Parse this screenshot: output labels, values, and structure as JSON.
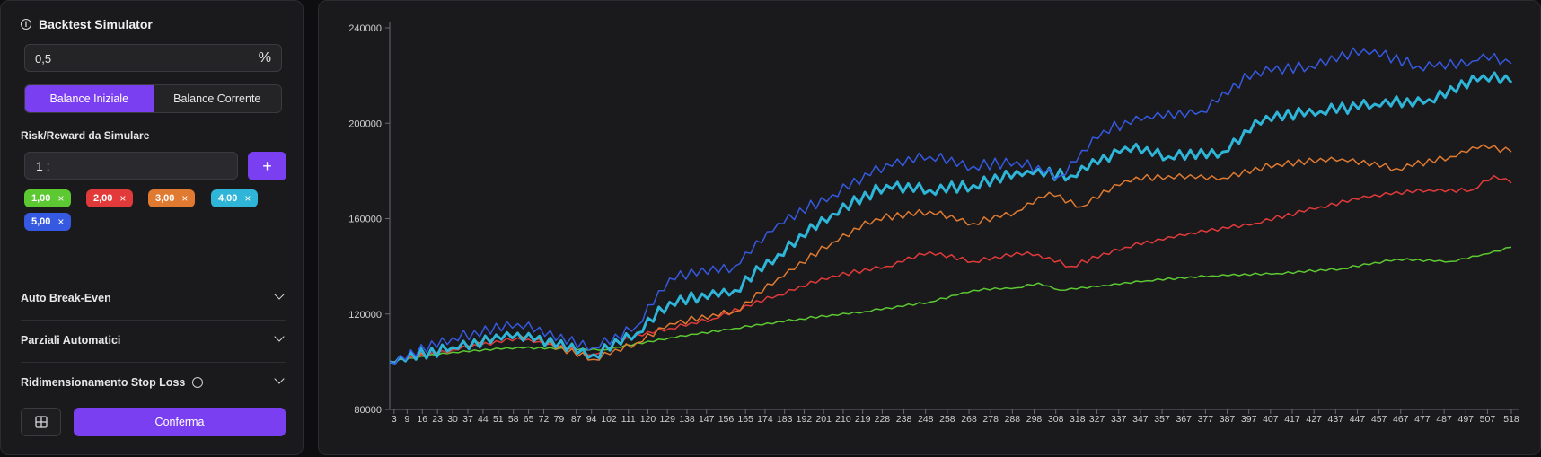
{
  "panel": {
    "title": "Backtest Simulator",
    "risk_value": "0,5",
    "risk_unit": "%",
    "balance_tabs": [
      {
        "label": "Balance Iniziale",
        "active": true
      },
      {
        "label": "Balance Corrente",
        "active": false
      }
    ],
    "rr_label": "Risk/Reward da Simulare",
    "rr_prefix": "1 :",
    "add_label": "+",
    "chips": [
      {
        "label": "1,00",
        "color": "#5cc832"
      },
      {
        "label": "2,00",
        "color": "#e23a3a"
      },
      {
        "label": "3,00",
        "color": "#e07a30"
      },
      {
        "label": "4,00",
        "color": "#2eb5d8"
      },
      {
        "label": "5,00",
        "color": "#3559e0"
      }
    ],
    "chip_close": "×",
    "accordions": [
      {
        "label": "Auto Break-Even",
        "icon": "chevron-down-icon"
      },
      {
        "label": "Parziali Automatici",
        "icon": "chevron-down-icon"
      },
      {
        "label": "Ridimensionamento Stop Loss",
        "icon": "chevron-down-icon",
        "info": true
      }
    ],
    "confirm_label": "Conferma",
    "grid_icon": "layout-grid-icon",
    "accent": "#7b3ff2"
  },
  "chart_data": {
    "type": "line",
    "y_ticks": [
      "240000",
      "200000",
      "160000",
      "120000",
      "80000"
    ],
    "ylim": [
      80000,
      240000
    ],
    "xlim": [
      1,
      518
    ],
    "x_ticks": [
      "3",
      "9",
      "16",
      "23",
      "30",
      "37",
      "44",
      "51",
      "58",
      "65",
      "72",
      "79",
      "87",
      "94",
      "102",
      "111",
      "120",
      "129",
      "138",
      "147",
      "156",
      "165",
      "174",
      "183",
      "192",
      "201",
      "210",
      "219",
      "228",
      "238",
      "248",
      "258",
      "268",
      "278",
      "288",
      "298",
      "308",
      "318",
      "327",
      "337",
      "347",
      "357",
      "367",
      "377",
      "387",
      "397",
      "407",
      "417",
      "427",
      "437",
      "447",
      "457",
      "467",
      "477",
      "487",
      "497",
      "507",
      "518"
    ],
    "grid": false,
    "series": [
      {
        "color": "#5cc832",
        "width": 1.5,
        "points": [
          [
            1,
            100000
          ],
          [
            30,
            104000
          ],
          [
            60,
            106000
          ],
          [
            100,
            105000
          ],
          [
            130,
            110000
          ],
          [
            160,
            114000
          ],
          [
            190,
            118000
          ],
          [
            220,
            121000
          ],
          [
            250,
            125000
          ],
          [
            270,
            130000
          ],
          [
            290,
            131000
          ],
          [
            300,
            133000
          ],
          [
            310,
            130000
          ],
          [
            330,
            132000
          ],
          [
            350,
            134000
          ],
          [
            380,
            136000
          ],
          [
            410,
            137000
          ],
          [
            440,
            139000
          ],
          [
            465,
            143000
          ],
          [
            490,
            142000
          ],
          [
            505,
            145000
          ],
          [
            518,
            148000
          ]
        ]
      },
      {
        "color": "#e23a3a",
        "width": 1.5,
        "points": [
          [
            1,
            100000
          ],
          [
            30,
            105000
          ],
          [
            60,
            110000
          ],
          [
            95,
            103000
          ],
          [
            110,
            110000
          ],
          [
            130,
            114000
          ],
          [
            150,
            118000
          ],
          [
            180,
            128000
          ],
          [
            205,
            136000
          ],
          [
            230,
            140000
          ],
          [
            250,
            146000
          ],
          [
            270,
            142000
          ],
          [
            295,
            146000
          ],
          [
            315,
            140000
          ],
          [
            340,
            148000
          ],
          [
            370,
            154000
          ],
          [
            400,
            158000
          ],
          [
            430,
            165000
          ],
          [
            455,
            170000
          ],
          [
            480,
            172000
          ],
          [
            500,
            172000
          ],
          [
            510,
            178000
          ],
          [
            518,
            175000
          ]
        ]
      },
      {
        "color": "#e07a30",
        "width": 1.5,
        "points": [
          [
            1,
            100000
          ],
          [
            30,
            106000
          ],
          [
            60,
            112000
          ],
          [
            95,
            101000
          ],
          [
            115,
            108000
          ],
          [
            130,
            116000
          ],
          [
            160,
            121000
          ],
          [
            180,
            135000
          ],
          [
            205,
            150000
          ],
          [
            225,
            160000
          ],
          [
            250,
            163000
          ],
          [
            270,
            158000
          ],
          [
            290,
            163000
          ],
          [
            305,
            171000
          ],
          [
            320,
            165000
          ],
          [
            340,
            176000
          ],
          [
            360,
            178000
          ],
          [
            385,
            177000
          ],
          [
            410,
            183000
          ],
          [
            440,
            185000
          ],
          [
            465,
            181000
          ],
          [
            490,
            186000
          ],
          [
            505,
            191000
          ],
          [
            518,
            188000
          ]
        ]
      },
      {
        "color": "#2eb5d8",
        "width": 3,
        "points": [
          [
            1,
            100000
          ],
          [
            30,
            106000
          ],
          [
            60,
            112000
          ],
          [
            95,
            103000
          ],
          [
            115,
            112000
          ],
          [
            130,
            125000
          ],
          [
            160,
            130000
          ],
          [
            180,
            145000
          ],
          [
            205,
            162000
          ],
          [
            230,
            174000
          ],
          [
            250,
            172000
          ],
          [
            270,
            174000
          ],
          [
            295,
            180000
          ],
          [
            315,
            178000
          ],
          [
            340,
            190000
          ],
          [
            360,
            186000
          ],
          [
            385,
            188000
          ],
          [
            405,
            203000
          ],
          [
            430,
            205000
          ],
          [
            455,
            208000
          ],
          [
            480,
            210000
          ],
          [
            505,
            220000
          ],
          [
            518,
            217000
          ]
        ]
      },
      {
        "color": "#3559e0",
        "width": 1.5,
        "points": [
          [
            1,
            100000
          ],
          [
            30,
            110000
          ],
          [
            60,
            116000
          ],
          [
            95,
            106000
          ],
          [
            115,
            115000
          ],
          [
            130,
            135000
          ],
          [
            160,
            140000
          ],
          [
            180,
            158000
          ],
          [
            205,
            170000
          ],
          [
            230,
            183000
          ],
          [
            250,
            186000
          ],
          [
            270,
            182000
          ],
          [
            290,
            184000
          ],
          [
            310,
            178000
          ],
          [
            330,
            197000
          ],
          [
            350,
            203000
          ],
          [
            375,
            205000
          ],
          [
            400,
            222000
          ],
          [
            425,
            224000
          ],
          [
            450,
            231000
          ],
          [
            475,
            224000
          ],
          [
            500,
            226000
          ],
          [
            505,
            229000
          ],
          [
            518,
            225000
          ]
        ]
      }
    ]
  }
}
